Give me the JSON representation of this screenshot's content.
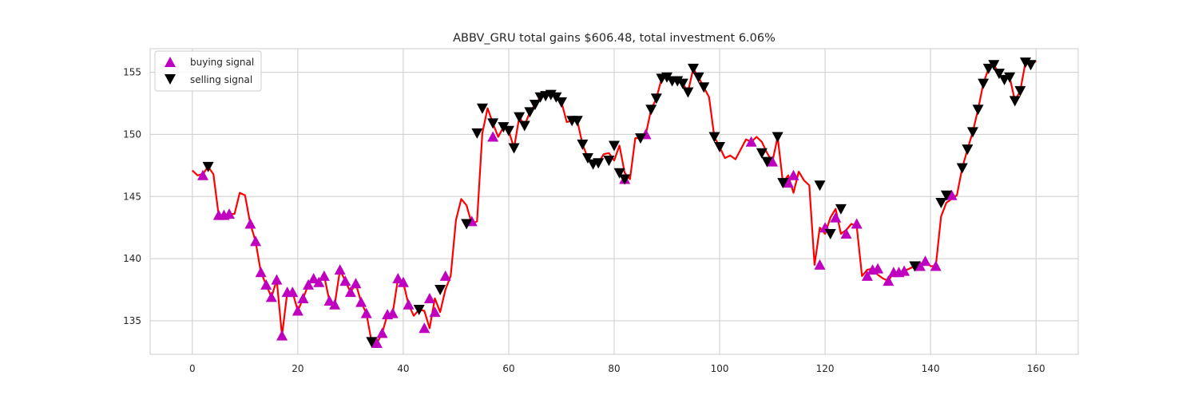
{
  "chart_data": {
    "type": "line",
    "title": "ABBV_GRU total gains $606.48, total investment 6.06%",
    "xlabel": "",
    "ylabel": "",
    "xlim": [
      -8,
      168
    ],
    "ylim": [
      132.3,
      156.9
    ],
    "xticks": [
      0,
      20,
      40,
      60,
      80,
      100,
      120,
      140,
      160
    ],
    "yticks": [
      135,
      140,
      145,
      150,
      155
    ],
    "grid": true,
    "legend_position": "top-left",
    "colors": {
      "line": "#ff0000",
      "buy": "#bf00bf",
      "sell": "#000000",
      "grid": "#cccccc"
    },
    "series": [
      {
        "name": "close",
        "values": [
          147.1,
          146.7,
          146.8,
          147.4,
          146.8,
          143.5,
          143.5,
          143.6,
          143.6,
          145.3,
          145.1,
          142.8,
          141.4,
          138.9,
          137.9,
          136.9,
          138.3,
          133.8,
          137.3,
          137.3,
          135.8,
          136.8,
          137.9,
          138.4,
          138.1,
          138.6,
          136.6,
          136.3,
          139.1,
          138.2,
          137.3,
          138.0,
          136.5,
          135.6,
          133.3,
          133.2,
          134.0,
          135.5,
          135.6,
          138.4,
          138.1,
          136.3,
          135.4,
          135.9,
          135.8,
          134.4,
          136.8,
          135.7,
          137.5,
          138.6,
          143.1,
          144.8,
          144.3,
          142.8,
          143.0,
          150.1,
          152.1,
          150.9,
          149.8,
          150.6,
          150.3,
          148.9,
          151.4,
          150.7,
          151.8,
          152.4,
          153.0,
          153.1,
          153.2,
          153.0,
          152.6,
          151.0,
          151.1,
          151.1,
          149.2,
          148.1,
          147.6,
          147.7,
          148.4,
          148.5,
          147.9,
          149.1,
          146.9,
          146.4,
          149.7,
          149.7,
          150.0,
          152.0,
          152.9,
          154.5,
          154.6,
          154.3,
          154.3,
          154.1,
          153.4,
          155.3,
          154.6,
          153.8,
          153.0,
          149.8,
          149.0,
          148.1,
          148.3,
          148.0,
          148.8,
          149.6,
          149.4,
          149.8,
          149.4,
          148.5,
          147.8,
          149.8,
          146.1,
          146.7,
          145.3,
          147.0,
          146.3,
          145.9,
          139.5,
          142.5,
          142.0,
          143.3,
          144.0,
          142.0,
          142.3,
          142.8,
          142.6,
          138.6,
          139.1,
          139.2,
          138.7,
          138.4,
          138.2,
          138.9,
          138.9,
          139.0,
          139.2,
          139.4,
          139.5,
          139.8,
          139.4,
          139.4,
          143.4,
          144.5,
          144.8,
          145.1,
          147.3,
          148.8,
          150.2,
          152.0,
          154.1,
          155.3,
          155.6,
          154.9,
          154.4,
          154.6,
          152.7,
          153.5,
          155.8,
          155.6,
          155.9
        ]
      },
      {
        "name": "buying signal",
        "marker": "triangle-up",
        "x": [
          2,
          5,
          6,
          7,
          11,
          12,
          13,
          14,
          15,
          16,
          17,
          18,
          19,
          20,
          21,
          22,
          23,
          24,
          25,
          26,
          27,
          28,
          29,
          30,
          31,
          32,
          33,
          35,
          36,
          37,
          38,
          39,
          40,
          41,
          44,
          45,
          46,
          48,
          53,
          57,
          82,
          86,
          106,
          110,
          113,
          114,
          119,
          120,
          122,
          124,
          126,
          128,
          129,
          130,
          132,
          133,
          134,
          135,
          138,
          139,
          141,
          144
        ],
        "y": [
          146.7,
          143.5,
          143.5,
          143.6,
          142.8,
          141.4,
          138.9,
          137.9,
          136.9,
          138.3,
          133.8,
          137.3,
          137.3,
          135.8,
          136.8,
          137.9,
          138.4,
          138.1,
          138.6,
          136.6,
          136.3,
          139.1,
          138.2,
          137.3,
          138.0,
          136.5,
          135.6,
          133.2,
          134.0,
          135.5,
          135.6,
          138.4,
          138.1,
          136.3,
          134.4,
          136.8,
          135.7,
          138.6,
          143.0,
          149.8,
          146.4,
          150.0,
          149.4,
          147.8,
          146.1,
          146.7,
          139.5,
          142.5,
          143.3,
          142.0,
          142.8,
          138.6,
          139.1,
          139.2,
          138.2,
          138.9,
          138.9,
          139.0,
          139.4,
          139.8,
          139.4,
          145.1
        ]
      },
      {
        "name": "selling signal",
        "marker": "triangle-down",
        "x": [
          3,
          34,
          43,
          47,
          52,
          54,
          55,
          57,
          59,
          60,
          61,
          62,
          63,
          64,
          65,
          66,
          67,
          68,
          69,
          70,
          72,
          73,
          74,
          75,
          76,
          77,
          79,
          80,
          81,
          82,
          85,
          87,
          88,
          89,
          90,
          91,
          92,
          93,
          94,
          95,
          96,
          97,
          99,
          100,
          108,
          109,
          111,
          112,
          119,
          121,
          123,
          137,
          142,
          143,
          146,
          147,
          148,
          149,
          150,
          151,
          152,
          153,
          154,
          155,
          156,
          157,
          158,
          159
        ],
        "y": [
          147.4,
          133.3,
          135.9,
          137.5,
          142.8,
          150.1,
          152.1,
          150.9,
          150.6,
          150.3,
          148.9,
          151.4,
          150.7,
          151.8,
          152.4,
          153.0,
          153.1,
          153.2,
          153.0,
          152.6,
          151.1,
          151.1,
          149.2,
          148.1,
          147.6,
          147.7,
          147.9,
          149.1,
          146.9,
          146.4,
          149.7,
          152.0,
          152.9,
          154.5,
          154.6,
          154.3,
          154.3,
          154.1,
          153.4,
          155.3,
          154.6,
          153.8,
          149.8,
          149.0,
          148.5,
          147.8,
          149.8,
          146.1,
          145.9,
          142.0,
          144.0,
          139.4,
          144.5,
          145.1,
          147.3,
          148.8,
          150.2,
          152.0,
          154.1,
          155.3,
          155.6,
          154.9,
          154.4,
          154.6,
          152.7,
          153.5,
          155.8,
          155.6
        ]
      }
    ]
  }
}
